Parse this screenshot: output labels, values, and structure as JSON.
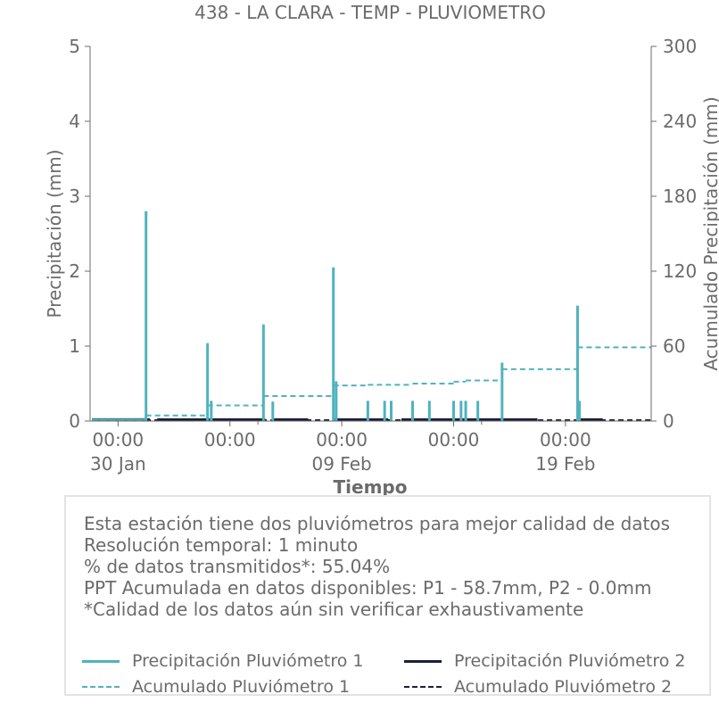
{
  "chart_data": {
    "type": "line",
    "title": "438 - LA CLARA - TEMP - PLUVIOMETRO",
    "xlabel": "Tiempo",
    "ylabel_left": "Precipitación (mm)",
    "ylabel_right": "Acumulado Precipitación (mm)",
    "ylim_left": [
      0,
      5
    ],
    "ylim_right": [
      0,
      300
    ],
    "yticks_left": [
      0,
      1,
      2,
      3,
      4,
      5
    ],
    "yticks_right": [
      0,
      60,
      120,
      180,
      240,
      300
    ],
    "xlim_days": [
      -1.5,
      28.6
    ],
    "xticks": [
      {
        "day": 0,
        "label": "00:00",
        "date": "30 Jan"
      },
      {
        "day": 6,
        "label": "00:00",
        "date": ""
      },
      {
        "day": 12,
        "label": "00:00",
        "date": "09 Feb"
      },
      {
        "day": 18,
        "label": "00:00",
        "date": ""
      },
      {
        "day": 24,
        "label": "00:00",
        "date": "19 Feb"
      }
    ],
    "colors": {
      "p1": "#4fb3bf",
      "p2": "#1c1f3a",
      "axis": "#6b6b6b",
      "text": "#6b6b6b"
    },
    "series": [
      {
        "name": "Precipitación Pluviómetro 1",
        "style": "solid",
        "axis": "left",
        "baseline": 0.02,
        "spikes": [
          {
            "day": 1.5,
            "value": 2.8
          },
          {
            "day": 4.8,
            "value": 1.04
          },
          {
            "day": 5.0,
            "value": 0.27
          },
          {
            "day": 7.8,
            "value": 1.29
          },
          {
            "day": 8.3,
            "value": 0.26
          },
          {
            "day": 11.55,
            "value": 2.05
          },
          {
            "day": 11.7,
            "value": 0.53
          },
          {
            "day": 13.4,
            "value": 0.27
          },
          {
            "day": 14.3,
            "value": 0.27
          },
          {
            "day": 14.65,
            "value": 0.27
          },
          {
            "day": 15.8,
            "value": 0.27
          },
          {
            "day": 16.7,
            "value": 0.27
          },
          {
            "day": 18.0,
            "value": 0.27
          },
          {
            "day": 18.4,
            "value": 0.27
          },
          {
            "day": 18.65,
            "value": 0.27
          },
          {
            "day": 19.3,
            "value": 0.27
          },
          {
            "day": 20.6,
            "value": 0.78
          },
          {
            "day": 24.65,
            "value": 1.54
          },
          {
            "day": 24.75,
            "value": 0.27
          }
        ]
      },
      {
        "name": "Precipitación Pluviómetro 2",
        "style": "solid",
        "axis": "left",
        "segments": [
          [
            -1.4,
            1.7
          ],
          [
            2.1,
            7.9
          ],
          [
            8.3,
            10.2
          ],
          [
            11.6,
            14.5
          ],
          [
            15.2,
            22.5
          ],
          [
            24.6,
            26.0
          ]
        ],
        "value": 0.02
      },
      {
        "name": "Acumulado Pluviómetro 1",
        "style": "dashed",
        "axis": "right",
        "steps": [
          {
            "day": -1.4,
            "value": 0.5
          },
          {
            "day": 1.5,
            "value": 4.5
          },
          {
            "day": 4.8,
            "value": 12.5
          },
          {
            "day": 7.8,
            "value": 20.0
          },
          {
            "day": 11.55,
            "value": 28.5
          },
          {
            "day": 13.4,
            "value": 29.0
          },
          {
            "day": 15.8,
            "value": 30.0
          },
          {
            "day": 18.0,
            "value": 31.5
          },
          {
            "day": 18.65,
            "value": 32.5
          },
          {
            "day": 20.6,
            "value": 41.5
          },
          {
            "day": 24.65,
            "value": 59.0
          },
          {
            "day": 28.6,
            "value": 59.0
          }
        ]
      },
      {
        "name": "Acumulado Pluviómetro 2",
        "style": "dashed",
        "axis": "right",
        "value": 0.0,
        "range": [
          -1.4,
          28.6
        ]
      }
    ]
  },
  "info": {
    "lines": [
      "Esta estación tiene dos pluviómetros para mejor calidad de datos",
      "Resolución temporal: 1 minuto",
      "% de datos transmitidos*: 55.04%",
      "PPT Acumulada en datos disponibles: P1 - 58.7mm, P2 - 0.0mm",
      "*Calidad de los datos aún sin verificar exhaustivamente"
    ]
  },
  "legend": {
    "p1_label": "Precipitación Pluviómetro 1",
    "p2_label": "Precipitación Pluviómetro 2",
    "acc1_label": "Acumulado Pluviómetro 1",
    "acc2_label": "Acumulado Pluviómetro 2"
  }
}
